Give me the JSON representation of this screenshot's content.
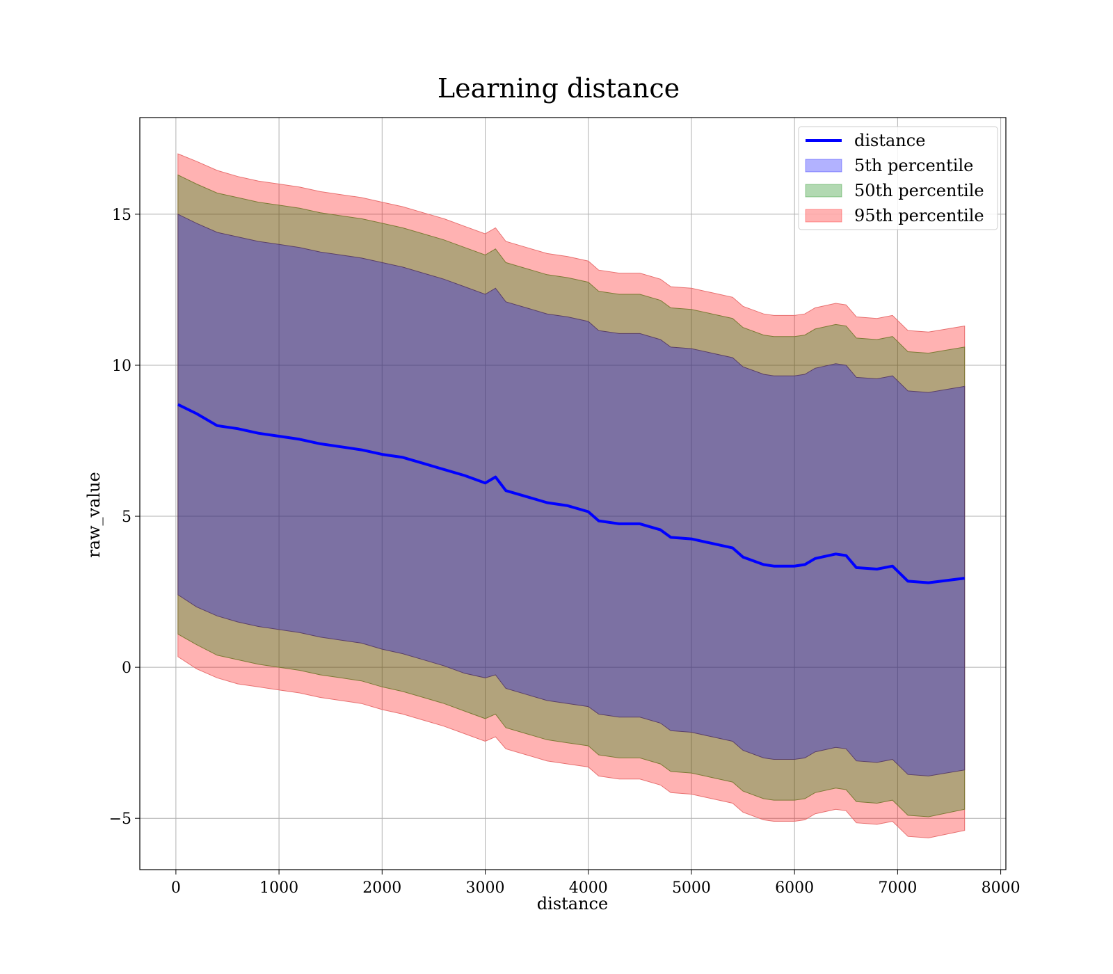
{
  "chart_data": {
    "type": "line",
    "title": "Learning distance",
    "xlabel": "distance",
    "ylabel": "raw_value",
    "xlim": [
      -350,
      8050
    ],
    "ylim": [
      -6.7,
      18.2
    ],
    "x_ticks": [
      0,
      1000,
      2000,
      3000,
      4000,
      5000,
      6000,
      7000,
      8000
    ],
    "x_tick_labels": [
      "0",
      "1000",
      "2000",
      "3000",
      "4000",
      "5000",
      "6000",
      "7000",
      "8000"
    ],
    "y_ticks": [
      -5,
      0,
      5,
      10,
      15
    ],
    "y_tick_labels": [
      "−5",
      "0",
      "5",
      "10",
      "15"
    ],
    "grid": true,
    "legend_position": "top-right",
    "legend": [
      "distance",
      "5th percentile",
      "50th percentile",
      "95th percentile"
    ],
    "colors": {
      "line": "#0000ff",
      "band_5th": "#0000ff",
      "band_50th": "#008000",
      "band_95th": "#ff0000",
      "band_95th_edge": "#e87070",
      "band_50th_edge": "#7d7a35",
      "band_5th_edge": "#5a3f67"
    },
    "x": [
      20,
      200,
      400,
      600,
      800,
      1000,
      1200,
      1400,
      1600,
      1800,
      2000,
      2200,
      2400,
      2600,
      2800,
      3000,
      3100,
      3200,
      3400,
      3600,
      3800,
      4000,
      4100,
      4300,
      4500,
      4700,
      4800,
      5000,
      5200,
      5400,
      5500,
      5700,
      5800,
      5900,
      6000,
      6100,
      6200,
      6400,
      6500,
      6600,
      6800,
      6950,
      7100,
      7300,
      7650
    ],
    "series": [
      {
        "name": "distance",
        "kind": "line",
        "values": [
          8.7,
          8.4,
          8.0,
          7.9,
          7.75,
          7.65,
          7.55,
          7.4,
          7.3,
          7.2,
          7.05,
          6.95,
          6.75,
          6.55,
          6.35,
          6.1,
          6.3,
          5.85,
          5.65,
          5.45,
          5.35,
          5.15,
          4.85,
          4.75,
          4.75,
          4.55,
          4.3,
          4.25,
          4.1,
          3.95,
          3.65,
          3.4,
          3.35,
          3.35,
          3.35,
          3.4,
          3.6,
          3.75,
          3.7,
          3.3,
          3.25,
          3.35,
          2.85,
          2.8,
          2.95
        ]
      },
      {
        "name": "5th percentile",
        "kind": "band",
        "lower": [
          2.4,
          2.0,
          1.7,
          1.5,
          1.35,
          1.25,
          1.15,
          1.0,
          0.9,
          0.8,
          0.6,
          0.45,
          0.25,
          0.05,
          -0.2,
          -0.35,
          -0.25,
          -0.7,
          -0.9,
          -1.1,
          -1.2,
          -1.3,
          -1.55,
          -1.65,
          -1.65,
          -1.85,
          -2.1,
          -2.15,
          -2.3,
          -2.45,
          -2.75,
          -3.0,
          -3.05,
          -3.05,
          -3.05,
          -3.0,
          -2.8,
          -2.65,
          -2.7,
          -3.1,
          -3.15,
          -3.05,
          -3.55,
          -3.6,
          -3.4
        ],
        "upper": [
          15.0,
          14.7,
          14.4,
          14.25,
          14.1,
          14.0,
          13.9,
          13.75,
          13.65,
          13.55,
          13.4,
          13.25,
          13.05,
          12.85,
          12.6,
          12.35,
          12.55,
          12.1,
          11.9,
          11.7,
          11.6,
          11.45,
          11.15,
          11.05,
          11.05,
          10.85,
          10.6,
          10.55,
          10.4,
          10.25,
          9.95,
          9.7,
          9.65,
          9.65,
          9.65,
          9.7,
          9.9,
          10.05,
          10.0,
          9.6,
          9.55,
          9.65,
          9.15,
          9.1,
          9.3
        ]
      },
      {
        "name": "50th percentile",
        "kind": "band",
        "lower": [
          1.1,
          0.75,
          0.4,
          0.25,
          0.1,
          0.0,
          -0.1,
          -0.25,
          -0.35,
          -0.45,
          -0.65,
          -0.8,
          -1.0,
          -1.2,
          -1.45,
          -1.7,
          -1.55,
          -2.0,
          -2.2,
          -2.4,
          -2.5,
          -2.6,
          -2.9,
          -3.0,
          -3.0,
          -3.2,
          -3.45,
          -3.5,
          -3.65,
          -3.8,
          -4.1,
          -4.35,
          -4.4,
          -4.4,
          -4.4,
          -4.35,
          -4.15,
          -4.0,
          -4.05,
          -4.45,
          -4.5,
          -4.4,
          -4.9,
          -4.95,
          -4.7
        ],
        "upper": [
          16.3,
          16.0,
          15.7,
          15.55,
          15.4,
          15.3,
          15.2,
          15.05,
          14.95,
          14.85,
          14.7,
          14.55,
          14.35,
          14.15,
          13.9,
          13.65,
          13.85,
          13.4,
          13.2,
          13.0,
          12.9,
          12.75,
          12.45,
          12.35,
          12.35,
          12.15,
          11.9,
          11.85,
          11.7,
          11.55,
          11.25,
          11.0,
          10.95,
          10.95,
          10.95,
          11.0,
          11.2,
          11.35,
          11.3,
          10.9,
          10.85,
          10.95,
          10.45,
          10.4,
          10.6
        ]
      },
      {
        "name": "95th percentile",
        "kind": "band",
        "lower": [
          0.35,
          -0.05,
          -0.35,
          -0.55,
          -0.65,
          -0.75,
          -0.85,
          -1.0,
          -1.1,
          -1.2,
          -1.4,
          -1.55,
          -1.75,
          -1.95,
          -2.2,
          -2.45,
          -2.3,
          -2.7,
          -2.9,
          -3.1,
          -3.2,
          -3.3,
          -3.6,
          -3.7,
          -3.7,
          -3.9,
          -4.15,
          -4.2,
          -4.35,
          -4.5,
          -4.8,
          -5.05,
          -5.1,
          -5.1,
          -5.1,
          -5.05,
          -4.85,
          -4.7,
          -4.75,
          -5.15,
          -5.2,
          -5.1,
          -5.6,
          -5.65,
          -5.4
        ],
        "upper": [
          17.0,
          16.75,
          16.45,
          16.25,
          16.1,
          16.0,
          15.9,
          15.75,
          15.65,
          15.55,
          15.4,
          15.25,
          15.05,
          14.85,
          14.6,
          14.35,
          14.55,
          14.1,
          13.9,
          13.7,
          13.6,
          13.45,
          13.15,
          13.05,
          13.05,
          12.85,
          12.6,
          12.55,
          12.4,
          12.25,
          11.95,
          11.7,
          11.65,
          11.65,
          11.65,
          11.7,
          11.9,
          12.05,
          12.0,
          11.6,
          11.55,
          11.65,
          11.15,
          11.1,
          11.3
        ]
      }
    ]
  }
}
